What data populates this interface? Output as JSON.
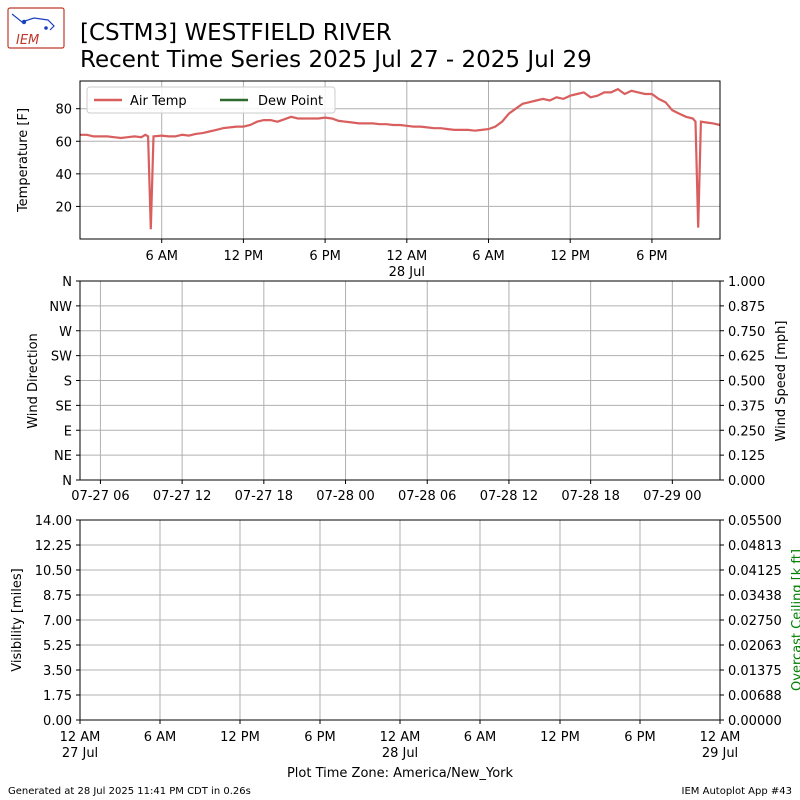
{
  "header": {
    "logo_text": "IEM",
    "title_line1": "[CSTM3] WESTFIELD RIVER",
    "title_line2": "Recent Time Series 2025 Jul 27 - 2025 Jul 29"
  },
  "footer": {
    "generated": "Generated at 28 Jul 2025 11:41 PM CDT in 0.26s",
    "app": "IEM Autoplot App #43",
    "timezone": "Plot Time Zone: America/New_York"
  },
  "colors": {
    "air_temp": "#d95f5f",
    "dew_point": "#2f6b2f",
    "grid": "#b0b0b0",
    "ceiling_label": "#008000"
  },
  "chart_data": [
    {
      "type": "line",
      "ylabel": "Temperature [F]",
      "ylim": [
        0,
        97
      ],
      "yticks": [
        20,
        40,
        60,
        80
      ],
      "xlim_hours": [
        0,
        47
      ],
      "xticks": [
        {
          "h": 6,
          "label": "6 AM",
          "sub": ""
        },
        {
          "h": 12,
          "label": "12 PM",
          "sub": ""
        },
        {
          "h": 18,
          "label": "6 PM",
          "sub": ""
        },
        {
          "h": 24,
          "label": "12 AM",
          "sub": "28 Jul"
        },
        {
          "h": 30,
          "label": "6 AM",
          "sub": ""
        },
        {
          "h": 36,
          "label": "12 PM",
          "sub": ""
        },
        {
          "h": 42,
          "label": "6 PM",
          "sub": ""
        }
      ],
      "grid": true,
      "legend_position": "top-left",
      "series": [
        {
          "name": "Air Temp",
          "x_hours": [
            0,
            0.5,
            1,
            1.5,
            2,
            2.5,
            3,
            3.5,
            4,
            4.5,
            4.8,
            5.0,
            5.2,
            5.4,
            6,
            6.5,
            7,
            7.5,
            8,
            8.5,
            9,
            9.5,
            10,
            10.5,
            11,
            11.5,
            12,
            12.5,
            13,
            13.5,
            14,
            14.5,
            15,
            15.5,
            16,
            16.5,
            17,
            17.5,
            18,
            18.5,
            19,
            19.5,
            20,
            20.5,
            21,
            21.5,
            22,
            22.5,
            23,
            23.5,
            24,
            24.5,
            25,
            25.5,
            26,
            26.5,
            27,
            27.5,
            28,
            28.5,
            29,
            29.5,
            30,
            30.5,
            31,
            31.5,
            32,
            32.5,
            33,
            33.5,
            34,
            34.5,
            35,
            35.5,
            36,
            36.5,
            37,
            37.5,
            38,
            38.5,
            39,
            39.5,
            40,
            40.5,
            41,
            41.5,
            42,
            42.5,
            43,
            43.5,
            44,
            44.5,
            45,
            45.2,
            45.4,
            45.6,
            46,
            46.5,
            47
          ],
          "values": [
            64,
            64,
            63,
            63,
            63,
            62.5,
            62,
            62.5,
            63,
            62.5,
            64,
            63,
            6,
            63,
            63.5,
            63,
            63,
            64,
            63.5,
            64.5,
            65,
            66,
            67,
            68,
            68.5,
            69,
            69,
            70,
            72,
            73,
            73,
            72,
            73.5,
            75,
            74,
            74,
            74,
            74,
            74.5,
            74,
            72.5,
            72,
            71.5,
            71,
            71,
            71,
            70.5,
            70.5,
            70,
            70,
            69.5,
            69,
            69,
            68.5,
            68,
            68,
            67.5,
            67,
            67,
            67,
            66.5,
            67,
            67.5,
            69,
            72,
            77,
            80,
            83,
            84,
            85,
            86,
            85,
            87,
            86,
            88,
            89,
            90,
            87,
            88,
            90,
            90,
            92,
            89,
            91,
            90,
            89,
            89,
            86,
            84,
            79,
            77,
            75,
            74,
            72,
            7,
            72,
            71.5,
            71,
            70
          ]
        },
        {
          "name": "Dew Point",
          "x_hours": [],
          "values": []
        }
      ]
    },
    {
      "type": "line",
      "ylabel": "Wind Direction",
      "ylabel_right": "Wind Speed [mph]",
      "yticks_left": [
        "N",
        "NE",
        "E",
        "SE",
        "S",
        "SW",
        "W",
        "NW",
        "N"
      ],
      "yticks_right": [
        "0.000",
        "0.125",
        "0.250",
        "0.375",
        "0.500",
        "0.625",
        "0.750",
        "0.875",
        "1.000"
      ],
      "ylim_right": [
        0,
        1
      ],
      "xticks": [
        {
          "h": 6,
          "label": "07-27 06"
        },
        {
          "h": 12,
          "label": "07-27 12"
        },
        {
          "h": 18,
          "label": "07-27 18"
        },
        {
          "h": 24,
          "label": "07-28 00"
        },
        {
          "h": 30,
          "label": "07-28 06"
        },
        {
          "h": 36,
          "label": "07-28 12"
        },
        {
          "h": 42,
          "label": "07-28 18"
        },
        {
          "h": 48,
          "label": "07-29 00"
        }
      ],
      "xlim_hours": [
        4.5,
        51.5
      ],
      "grid": true,
      "series": []
    },
    {
      "type": "line",
      "ylabel": "Visibility [miles]",
      "ylabel_right": "Overcast Ceiling [k ft]",
      "ylim": [
        0,
        14
      ],
      "yticks_left": [
        "0.00",
        "1.75",
        "3.50",
        "5.25",
        "7.00",
        "8.75",
        "10.50",
        "12.25",
        "14.00"
      ],
      "yticks_right": [
        "0.00000",
        "0.00688",
        "0.01375",
        "0.02063",
        "0.02750",
        "0.03438",
        "0.04125",
        "0.04813",
        "0.05500"
      ],
      "ylim_right": [
        0,
        0.055
      ],
      "xlim_hours": [
        0,
        48
      ],
      "xticks": [
        {
          "h": 0,
          "label": "12 AM",
          "sub": "27 Jul"
        },
        {
          "h": 6,
          "label": "6 AM",
          "sub": ""
        },
        {
          "h": 12,
          "label": "12 PM",
          "sub": ""
        },
        {
          "h": 18,
          "label": "6 PM",
          "sub": ""
        },
        {
          "h": 24,
          "label": "12 AM",
          "sub": "28 Jul"
        },
        {
          "h": 30,
          "label": "6 AM",
          "sub": ""
        },
        {
          "h": 36,
          "label": "12 PM",
          "sub": ""
        },
        {
          "h": 42,
          "label": "6 PM",
          "sub": ""
        },
        {
          "h": 48,
          "label": "12 AM",
          "sub": "29 Jul"
        }
      ],
      "grid": true,
      "series": []
    }
  ]
}
